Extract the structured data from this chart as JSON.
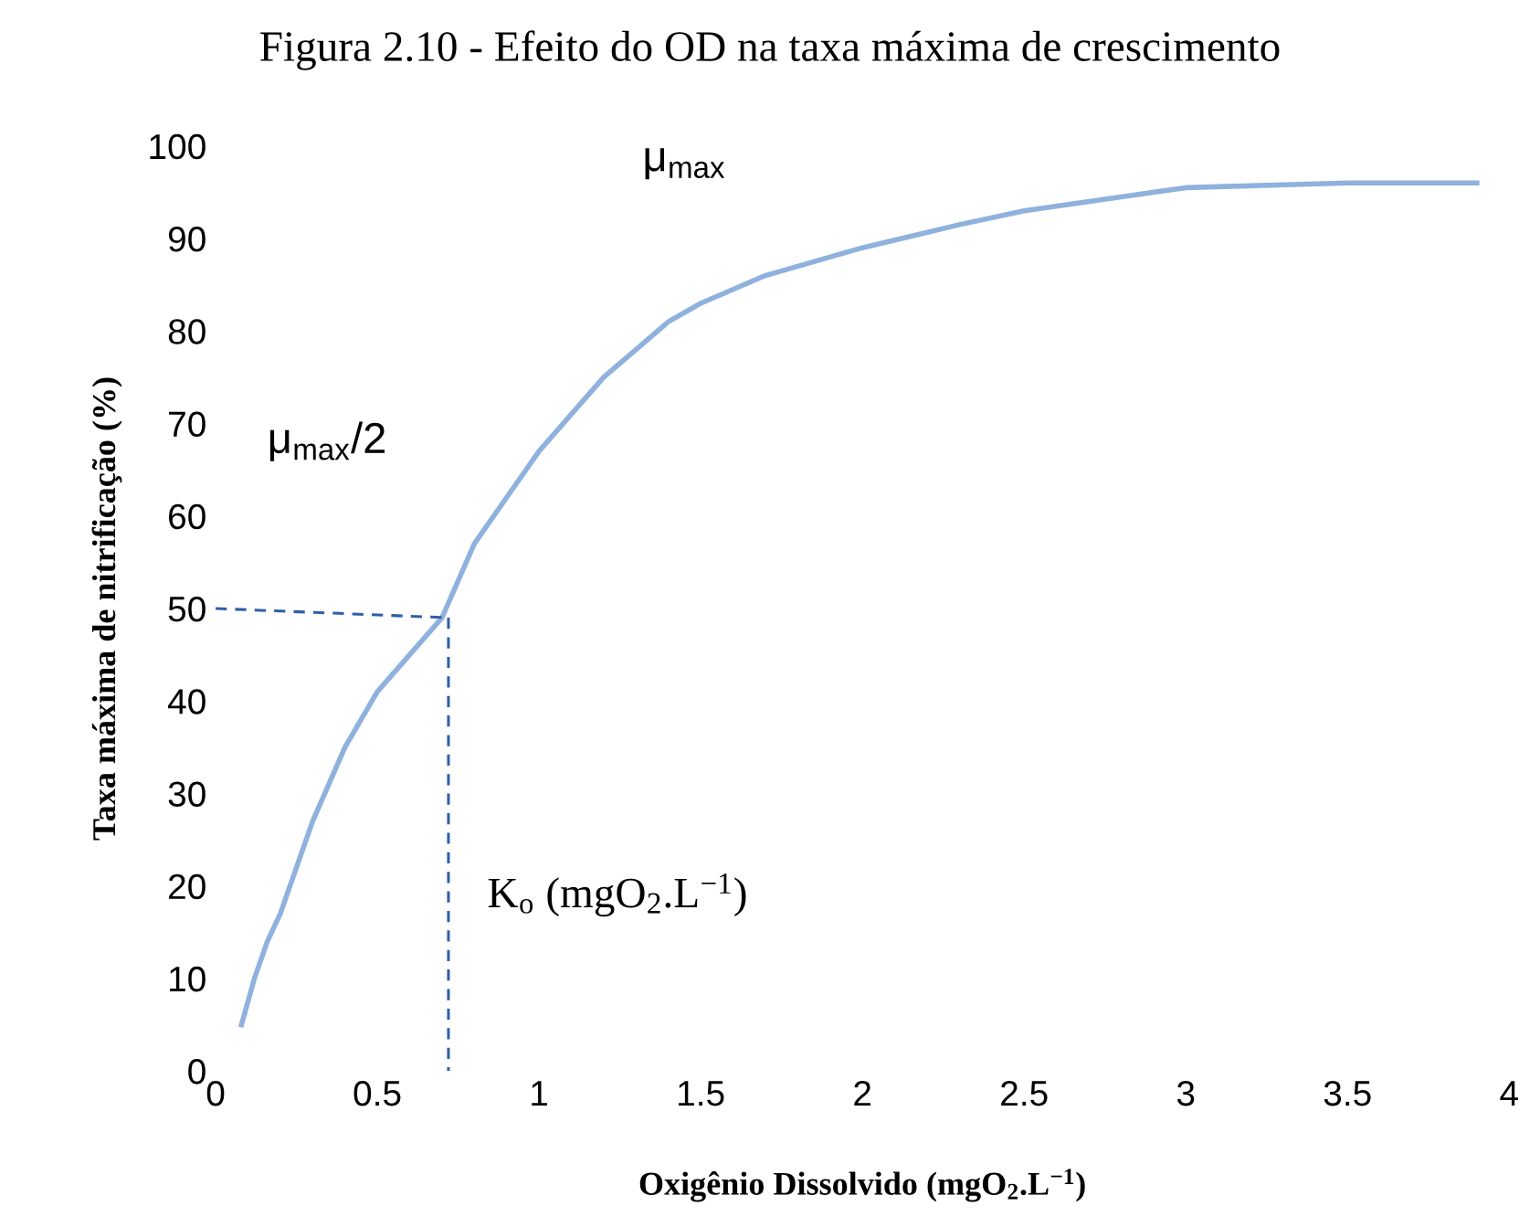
{
  "chart_data": {
    "type": "line",
    "title": "Figura 2.10 - Efeito do OD na taxa máxima de crescimento",
    "xlabel": "Oxigênio Dissolvido (mgO$_{2}$.L$^{−1}$)",
    "ylabel": "Taxa máxima de nitrificação (%)",
    "xlim": [
      0,
      4
    ],
    "xticks": [
      0,
      0.5,
      1,
      1.5,
      2,
      2.5,
      3,
      3.5,
      4
    ],
    "ylim": [
      0,
      100
    ],
    "yticks": [
      0,
      10,
      20,
      30,
      40,
      50,
      60,
      70,
      80,
      90,
      100
    ],
    "grid": false,
    "legend": false,
    "marker": "none",
    "series": [
      {
        "color": "#8fb1dd",
        "line_style": "solid",
        "x": [
          0.08,
          0.12,
          0.16,
          0.2,
          0.25,
          0.3,
          0.4,
          0.5,
          0.6,
          0.7,
          0.8,
          0.9,
          1.0,
          1.1,
          1.2,
          1.3,
          1.4,
          1.5,
          1.7,
          2.0,
          2.3,
          2.5,
          2.8,
          3.0,
          3.5,
          3.9
        ],
        "values": [
          5,
          10,
          14,
          17,
          22,
          27,
          35,
          41,
          45,
          49,
          57,
          62,
          67,
          71,
          75,
          78,
          81,
          83,
          86,
          89,
          91.5,
          93,
          94.5,
          95.5,
          96,
          96
        ]
      },
      {
        "color": "#2f5fa8",
        "line_style": "dashed",
        "x": [
          0,
          0.72
        ],
        "values": [
          50,
          49
        ]
      },
      {
        "color": "#2f5fa8",
        "line_style": "dashed",
        "x": [
          0.72,
          0.72
        ],
        "values": [
          49,
          0
        ]
      }
    ],
    "annotations": [
      "μ$_{max}$",
      "μ$_{max}$/2",
      "K$_{o}$ (mgO$_{2}$.L$^{−1}$)"
    ]
  }
}
